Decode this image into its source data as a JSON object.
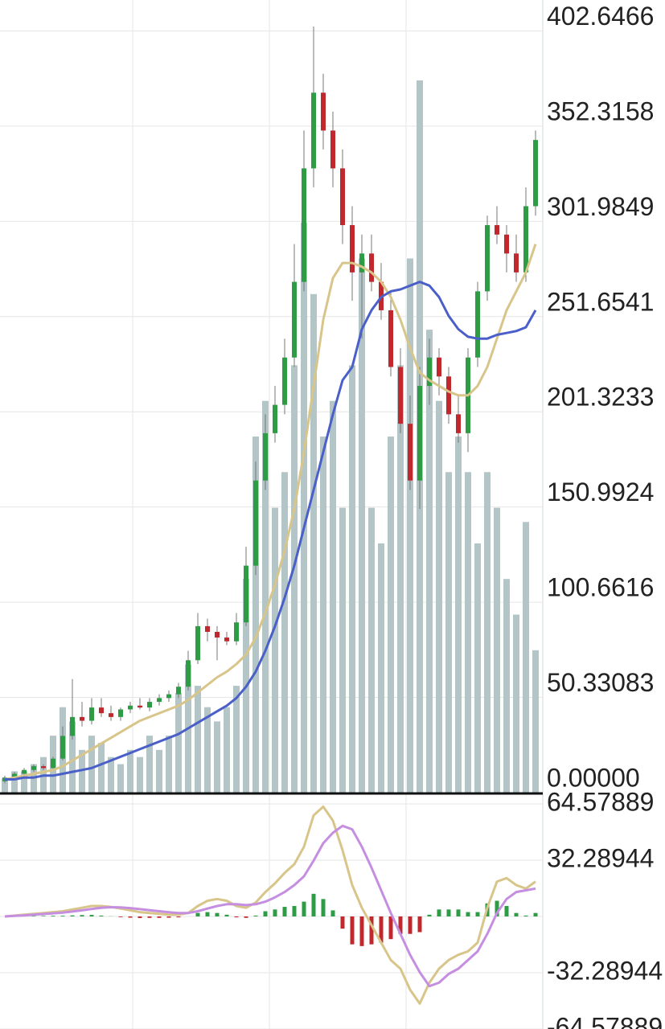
{
  "chart_data": [
    {
      "type": "candlestick",
      "open": [
        6,
        8,
        10,
        12,
        14,
        13,
        18,
        30,
        40,
        38,
        45,
        42,
        40,
        44,
        46,
        45,
        48,
        50,
        52,
        56,
        70,
        88,
        85,
        82,
        80,
        90,
        120,
        165,
        190,
        205,
        230,
        270,
        330,
        370,
        350,
        330,
        300,
        275,
        285,
        270,
        255,
        225,
        195,
        165,
        215,
        230,
        220,
        200,
        190,
        230,
        265,
        300,
        295,
        285,
        275,
        310
      ],
      "high": [
        9,
        11,
        13,
        15,
        15,
        19,
        35,
        60,
        48,
        50,
        50,
        46,
        45,
        48,
        50,
        50,
        52,
        54,
        58,
        75,
        95,
        92,
        88,
        85,
        95,
        130,
        175,
        200,
        215,
        240,
        290,
        350,
        405,
        380,
        360,
        340,
        310,
        295,
        295,
        280,
        265,
        235,
        210,
        225,
        240,
        235,
        225,
        210,
        235,
        270,
        305,
        310,
        300,
        295,
        320,
        350
      ],
      "low": [
        5,
        7,
        9,
        11,
        12,
        12,
        17,
        28,
        35,
        36,
        40,
        38,
        38,
        42,
        44,
        43,
        46,
        48,
        50,
        54,
        68,
        80,
        70,
        78,
        78,
        88,
        115,
        160,
        185,
        200,
        225,
        265,
        320,
        340,
        320,
        290,
        260,
        240,
        265,
        250,
        220,
        190,
        160,
        150,
        205,
        210,
        195,
        185,
        180,
        225,
        260,
        290,
        275,
        270,
        270,
        305
      ],
      "close": [
        8,
        10,
        12,
        14,
        13,
        18,
        30,
        40,
        38,
        45,
        42,
        40,
        44,
        46,
        45,
        48,
        50,
        52,
        56,
        70,
        88,
        85,
        82,
        80,
        90,
        120,
        165,
        190,
        205,
        230,
        270,
        330,
        370,
        350,
        330,
        300,
        275,
        285,
        270,
        255,
        225,
        195,
        165,
        215,
        230,
        220,
        200,
        190,
        230,
        265,
        300,
        295,
        285,
        275,
        310,
        345
      ],
      "up_color": "#2e9b45",
      "down_color": "#c0282d",
      "overlays": [
        {
          "color": "#d8c58a",
          "values": [
            7,
            8,
            9,
            10,
            11,
            12,
            14,
            17,
            20,
            23,
            26,
            29,
            32,
            35,
            38,
            40,
            42,
            44,
            46,
            49,
            53,
            57,
            61,
            64,
            68,
            73,
            82,
            95,
            110,
            128,
            150,
            180,
            215,
            250,
            272,
            280,
            280,
            278,
            275,
            270,
            262,
            250,
            235,
            222,
            218,
            215,
            212,
            210,
            210,
            215,
            225,
            240,
            255,
            265,
            275,
            290
          ]
        },
        {
          "color": "#4a5fc8",
          "values": [
            7,
            7,
            8,
            8,
            9,
            9,
            10,
            11,
            12,
            13,
            15,
            17,
            19,
            21,
            23,
            25,
            27,
            29,
            31,
            34,
            37,
            40,
            43,
            46,
            50,
            56,
            64,
            75,
            88,
            103,
            120,
            140,
            160,
            180,
            200,
            218,
            225,
            245,
            255,
            262,
            265,
            266,
            268,
            270,
            268,
            262,
            252,
            245,
            241,
            240,
            240,
            242,
            243,
            244,
            246,
            255
          ]
        }
      ],
      "volume": {
        "color": "#b3c5c6",
        "ylim": [
          0,
          100
        ],
        "values": [
          2,
          3,
          3,
          4,
          5,
          8,
          12,
          10,
          6,
          8,
          7,
          5,
          4,
          6,
          5,
          8,
          6,
          8,
          14,
          18,
          15,
          12,
          10,
          12,
          15,
          30,
          50,
          55,
          40,
          45,
          60,
          80,
          70,
          50,
          55,
          40,
          60,
          75,
          40,
          35,
          50,
          60,
          75,
          100,
          65,
          55,
          45,
          50,
          45,
          35,
          45,
          40,
          30,
          25,
          38,
          20
        ]
      },
      "ylim": [
        0,
        419
      ],
      "yticks": [
        {
          "value": 0,
          "label": "0.00000"
        },
        50.33083,
        100.6616,
        150.9924,
        201.3233,
        251.6541,
        301.9849,
        352.3158,
        402.6466
      ]
    },
    {
      "type": "macd",
      "series": [
        {
          "color": "#d8c58a",
          "values": [
            0,
            0.5,
            1,
            1.5,
            2,
            2.5,
            3,
            4,
            5,
            6,
            6,
            5.5,
            4.5,
            3.5,
            2.5,
            2,
            1.5,
            1,
            1,
            2,
            6,
            9,
            10,
            9,
            6,
            5,
            8,
            14,
            19,
            25,
            30,
            40,
            58,
            63,
            55,
            38,
            18,
            5,
            -5,
            -15,
            -25,
            -30,
            -42,
            -50,
            -38,
            -30,
            -25,
            -22,
            -20,
            -15,
            5,
            20,
            22,
            18,
            16,
            20
          ]
        },
        {
          "color": "#c58ee0",
          "values": [
            0,
            0.3,
            0.6,
            1,
            1.4,
            1.8,
            2.2,
            2.8,
            3.5,
            4.3,
            5,
            5.3,
            5.2,
            4.8,
            4.2,
            3.6,
            3,
            2.4,
            2,
            2,
            3,
            4.5,
            6,
            7,
            7,
            6.5,
            7,
            8.5,
            11,
            14,
            18,
            23,
            32,
            42,
            48,
            52,
            50,
            40,
            28,
            15,
            2,
            -10,
            -22,
            -32,
            -40,
            -38,
            -33,
            -30,
            -25,
            -20,
            -10,
            2,
            10,
            14,
            15,
            16
          ]
        }
      ],
      "histogram": {
        "up_color": "#2e9b45",
        "down_color": "#c0282d",
        "values": [
          0,
          0.1,
          0.2,
          0.3,
          0.3,
          0.4,
          0.4,
          0.6,
          0.8,
          0.9,
          0.5,
          0.1,
          -0.4,
          -0.7,
          -0.9,
          -0.8,
          -0.8,
          -0.7,
          -0.5,
          0,
          2,
          2.5,
          2,
          1,
          -0.5,
          -0.8,
          0.5,
          3,
          4,
          5.5,
          6,
          8.5,
          13,
          10,
          3.5,
          -7,
          -16,
          -17,
          -16,
          -15,
          -13,
          -10,
          -10,
          -9,
          1,
          4,
          4,
          4,
          2.5,
          2.5,
          7.5,
          9,
          6,
          2,
          0.5,
          2
        ]
      },
      "ylim": [
        -64.57889,
        64.57889
      ],
      "yticks": [
        64.57889,
        32.28944,
        -32.28944,
        -64.57889
      ]
    }
  ]
}
